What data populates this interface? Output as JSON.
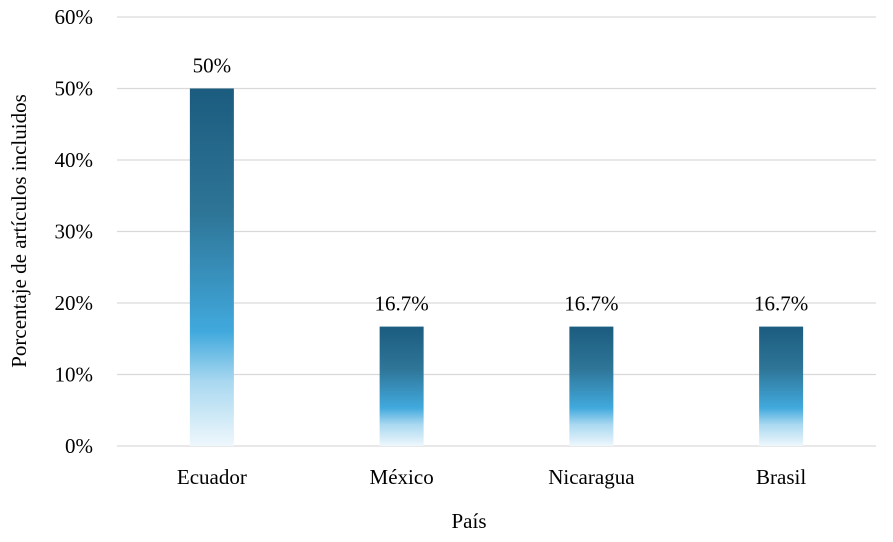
{
  "chart_data": {
    "type": "bar",
    "title": "",
    "xlabel": "País",
    "ylabel": "Porcentaje de artículos incluidos",
    "categories": [
      "Ecuador",
      "México",
      "Nicaragua",
      "Brasil"
    ],
    "values": [
      50,
      16.7,
      16.7,
      16.7
    ],
    "data_labels": [
      "50%",
      "16.7%",
      "16.7%",
      "16.7%"
    ],
    "ylim": [
      0,
      60
    ],
    "yticks": [
      0,
      10,
      20,
      30,
      40,
      50,
      60
    ],
    "ytick_labels": [
      "0%",
      "10%",
      "20%",
      "30%",
      "40%",
      "50%",
      "60%"
    ],
    "grid": true,
    "legend": "none",
    "colors": {
      "bar_top": "#1b5c7f",
      "bar_mid": "#41a9dd",
      "bar_bottom": "#eef7fc",
      "gridline": "#d9d9d9"
    }
  }
}
